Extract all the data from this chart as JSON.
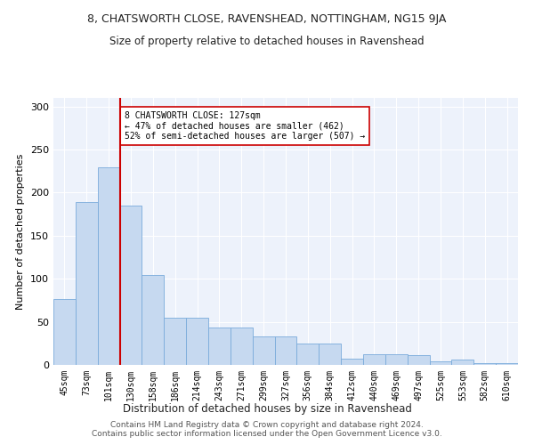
{
  "title": "8, CHATSWORTH CLOSE, RAVENSHEAD, NOTTINGHAM, NG15 9JA",
  "subtitle": "Size of property relative to detached houses in Ravenshead",
  "xlabel": "Distribution of detached houses by size in Ravenshead",
  "ylabel": "Number of detached properties",
  "categories": [
    "45sqm",
    "73sqm",
    "101sqm",
    "130sqm",
    "158sqm",
    "186sqm",
    "214sqm",
    "243sqm",
    "271sqm",
    "299sqm",
    "327sqm",
    "356sqm",
    "384sqm",
    "412sqm",
    "440sqm",
    "469sqm",
    "497sqm",
    "525sqm",
    "553sqm",
    "582sqm",
    "610sqm"
  ],
  "bar_values": [
    76,
    189,
    229,
    185,
    104,
    55,
    55,
    43,
    43,
    33,
    33,
    25,
    25,
    7,
    12,
    12,
    11,
    4,
    6,
    2,
    2
  ],
  "bar_color": "#c6d9f0",
  "bar_edge_color": "#7aabdb",
  "ref_line_color": "#cc0000",
  "ylim": [
    0,
    310
  ],
  "yticks": [
    0,
    50,
    100,
    150,
    200,
    250,
    300
  ],
  "footer_line1": "Contains HM Land Registry data © Crown copyright and database right 2024.",
  "footer_line2": "Contains public sector information licensed under the Open Government Licence v3.0.",
  "background_color": "#edf2fb",
  "title_fontsize": 9,
  "subtitle_fontsize": 8.5
}
